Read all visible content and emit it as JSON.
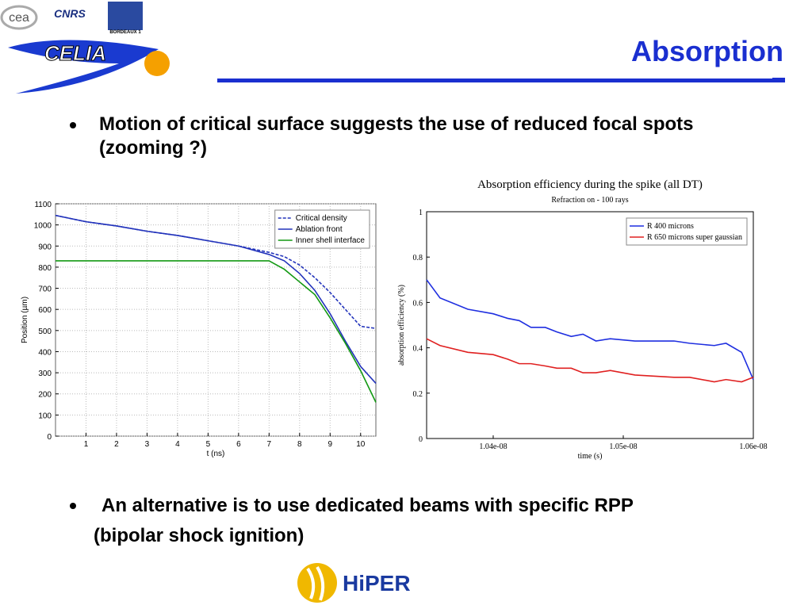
{
  "header": {
    "title": "Absorption"
  },
  "logos": {
    "cea": "cea",
    "cnrs": "CNRS",
    "bordeaux": "BORDEAUX 1",
    "celia": "CELIA",
    "hiper": "HiPER"
  },
  "bullets": [
    "Motion of critical surface suggests the use of reduced focal spots (zooming ?)",
    "An alternative is to use dedicated beams with specific RPP",
    "(bipolar shock ignition)"
  ],
  "chart_data": [
    {
      "type": "line",
      "x_label": "t (ns)",
      "y_label": "Position (µm)",
      "x": [
        0,
        1,
        2,
        3,
        4,
        5,
        6,
        7,
        7.5,
        8,
        8.5,
        9,
        9.5,
        10,
        10.5
      ],
      "series": [
        {
          "name": "Critical density",
          "color": "#2233bb",
          "dashed": true,
          "values": [
            1045,
            1015,
            995,
            970,
            950,
            925,
            900,
            870,
            850,
            810,
            750,
            680,
            600,
            520,
            510
          ]
        },
        {
          "name": "Ablation front",
          "color": "#2233bb",
          "dashed": false,
          "values": [
            1045,
            1015,
            995,
            970,
            950,
            925,
            900,
            860,
            830,
            770,
            690,
            580,
            450,
            330,
            250
          ]
        },
        {
          "name": "Inner shell interface",
          "color": "#139913",
          "dashed": false,
          "values": [
            830,
            830,
            830,
            830,
            830,
            830,
            830,
            830,
            790,
            730,
            670,
            560,
            440,
            310,
            160
          ]
        }
      ],
      "xlim": [
        0,
        10.5
      ],
      "xticks": [
        1,
        2,
        3,
        4,
        5,
        6,
        7,
        8,
        9,
        10
      ],
      "ylim": [
        0,
        1100
      ],
      "yticks": [
        0,
        100,
        200,
        300,
        400,
        500,
        600,
        700,
        800,
        900,
        1000,
        1100
      ],
      "grid": true,
      "legend": "upper right"
    },
    {
      "type": "line",
      "title": "Absorption efficiency during the spike (all DT)",
      "subtitle": "Refraction on - 100 rays",
      "x_label": "time (s)",
      "y_label": "absorption efficiency (%)",
      "x": [
        1.03488e-08,
        1.03591e-08,
        1.03805e-08,
        1.04e-08,
        1.0411e-08,
        1.042e-08,
        1.0429e-08,
        1.044e-08,
        1.0449e-08,
        1.046e-08,
        1.0469e-08,
        1.0479e-08,
        1.049e-08,
        1.0509e-08,
        1.0539e-08,
        1.0551e-08,
        1.057e-08,
        1.0579e-08,
        1.0591e-08,
        1.06e-08
      ],
      "series": [
        {
          "name": "R 400 microns",
          "color": "#1f2fe0",
          "dashed": false,
          "values": [
            0.7,
            0.62,
            0.57,
            0.55,
            0.53,
            0.52,
            0.49,
            0.49,
            0.47,
            0.45,
            0.46,
            0.43,
            0.44,
            0.43,
            0.43,
            0.42,
            0.41,
            0.42,
            0.38,
            0.26
          ]
        },
        {
          "name": "R 650 microns super gaussian",
          "color": "#e02020",
          "dashed": false,
          "values": [
            0.44,
            0.41,
            0.38,
            0.37,
            0.35,
            0.33,
            0.33,
            0.32,
            0.31,
            0.31,
            0.29,
            0.29,
            0.3,
            0.28,
            0.27,
            0.27,
            0.25,
            0.26,
            0.25,
            0.27
          ]
        }
      ],
      "xlim": [
        1.03488e-08,
        1.06e-08
      ],
      "xticks": [
        {
          "value": 1.04e-08,
          "label": "1.04e-08"
        },
        {
          "value": 1.05e-08,
          "label": "1.05e-08"
        },
        {
          "value": 1.06e-08,
          "label": "1.06e-08"
        }
      ],
      "ylim": [
        0,
        1
      ],
      "yticks": [
        0,
        0.2,
        0.4,
        0.6,
        0.8,
        1
      ],
      "grid": false,
      "legend": "upper right"
    }
  ]
}
